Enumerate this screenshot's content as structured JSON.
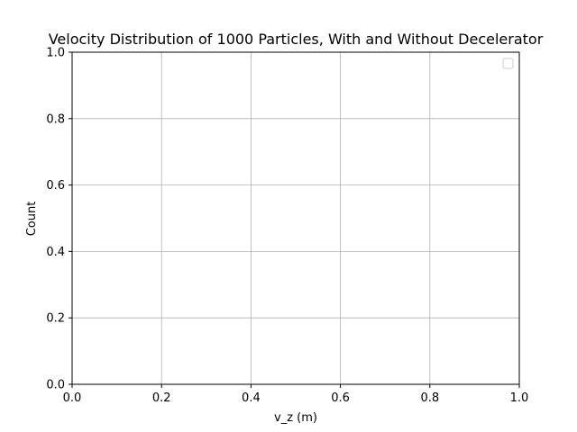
{
  "chart_data": {
    "type": "histogram",
    "title": "Velocity Distribution of 1000 Particles, With and Without Decelerator",
    "xlabel": "v_z (m)",
    "ylabel": "Count",
    "xlim": [
      0.0,
      1.0
    ],
    "ylim": [
      0.0,
      1.0
    ],
    "x_ticks": [
      "0.0",
      "0.2",
      "0.4",
      "0.6",
      "0.8",
      "1.0"
    ],
    "y_ticks": [
      "0.0",
      "0.2",
      "0.4",
      "0.6",
      "0.8",
      "1.0"
    ],
    "grid": true,
    "legend": {
      "location": "upper right",
      "entries": []
    },
    "series": []
  },
  "colors": {
    "grid": "#b0b0b0",
    "axes": "#000000",
    "background": "#ffffff",
    "legend_border": "#cccccc"
  }
}
